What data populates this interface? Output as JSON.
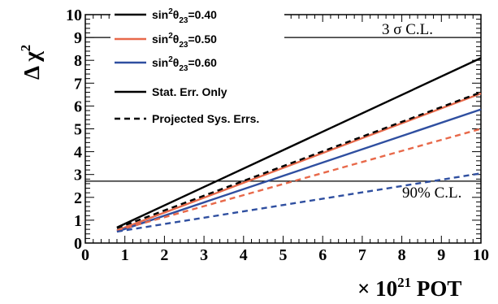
{
  "chart_data": {
    "type": "line",
    "xlabel_prefix": "× 10",
    "xlabel_exp": "21",
    "xlabel_suffix": " POT",
    "ylabel_prefix": "Δ χ",
    "ylabel_exp": "2",
    "xlim": [
      0,
      10
    ],
    "ylim": [
      0,
      10
    ],
    "xticks": [
      "0",
      "1",
      "2",
      "3",
      "4",
      "5",
      "6",
      "7",
      "8",
      "9",
      "10"
    ],
    "yticks": [
      "0",
      "1",
      "2",
      "3",
      "4",
      "5",
      "6",
      "7",
      "8",
      "9",
      "10"
    ],
    "reference_lines": [
      {
        "label": "3 σ C.L.",
        "y": 9.0
      },
      {
        "label": "90% C.L.",
        "y": 2.71
      }
    ],
    "legend": [
      {
        "pre": "sin",
        "sup": "2",
        "mid": "θ",
        "sub": "23",
        "post": "=0.40",
        "color": "#000000",
        "dash": "solid"
      },
      {
        "pre": "sin",
        "sup": "2",
        "mid": "θ",
        "sub": "23",
        "post": "=0.50",
        "color": "#e8694a",
        "dash": "solid"
      },
      {
        "pre": "sin",
        "sup": "2",
        "mid": "θ",
        "sub": "23",
        "post": "=0.60",
        "color": "#2f4fa0",
        "dash": "solid"
      },
      {
        "text": "Stat. Err. Only",
        "color": "#000000",
        "dash": "solid"
      },
      {
        "text": "Projected Sys. Errs.",
        "color": "#000000",
        "dash": "dashed"
      }
    ],
    "series": [
      {
        "color": "#000000",
        "dash": "solid",
        "x": [
          0.8,
          10
        ],
        "y": [
          0.68,
          8.1
        ]
      },
      {
        "color": "#e8694a",
        "dash": "solid",
        "x": [
          0.8,
          10
        ],
        "y": [
          0.55,
          6.55
        ]
      },
      {
        "color": "#2f4fa0",
        "dash": "solid",
        "x": [
          0.8,
          10
        ],
        "y": [
          0.5,
          5.85
        ]
      },
      {
        "color": "#000000",
        "dash": "dashed",
        "x": [
          0.8,
          10
        ],
        "y": [
          0.65,
          6.6
        ]
      },
      {
        "color": "#e8694a",
        "dash": "dashed",
        "x": [
          0.8,
          10
        ],
        "y": [
          0.55,
          5.0
        ]
      },
      {
        "color": "#2f4fa0",
        "dash": "dashed",
        "x": [
          0.8,
          10
        ],
        "y": [
          0.5,
          3.05
        ]
      }
    ]
  }
}
